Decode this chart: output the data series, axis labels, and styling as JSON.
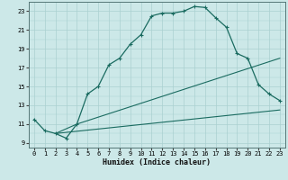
{
  "title": "",
  "xlabel": "Humidex (Indice chaleur)",
  "ylabel": "",
  "bg_color": "#cce8e8",
  "line_color": "#1a6b60",
  "grid_color": "#aad0d0",
  "xlim": [
    -0.5,
    23.5
  ],
  "ylim": [
    8.5,
    24.0
  ],
  "yticks": [
    9,
    11,
    13,
    15,
    17,
    19,
    21,
    23
  ],
  "xticks": [
    0,
    1,
    2,
    3,
    4,
    5,
    6,
    7,
    8,
    9,
    10,
    11,
    12,
    13,
    14,
    15,
    16,
    17,
    18,
    19,
    20,
    21,
    22,
    23
  ],
  "curve1_x": [
    0,
    1,
    2,
    3,
    4,
    5,
    6,
    7,
    8,
    9,
    10,
    11,
    12,
    13,
    14,
    15,
    16,
    17,
    18,
    19,
    20,
    21,
    22,
    23
  ],
  "curve1_y": [
    11.5,
    10.3,
    10.0,
    9.5,
    11.0,
    14.2,
    15.0,
    17.3,
    18.0,
    19.5,
    20.5,
    22.5,
    22.8,
    22.8,
    23.0,
    23.5,
    23.4,
    22.3,
    21.3,
    18.5,
    18.0,
    15.2,
    14.2,
    13.5
  ],
  "curve2_x": [
    2,
    3,
    4,
    23
  ],
  "curve2_y": [
    10.0,
    10.5,
    11.0,
    18.0
  ],
  "curve3_x": [
    2,
    23
  ],
  "curve3_y": [
    10.0,
    12.5
  ],
  "xlabel_fontsize": 6.0,
  "tick_fontsize": 5.0
}
